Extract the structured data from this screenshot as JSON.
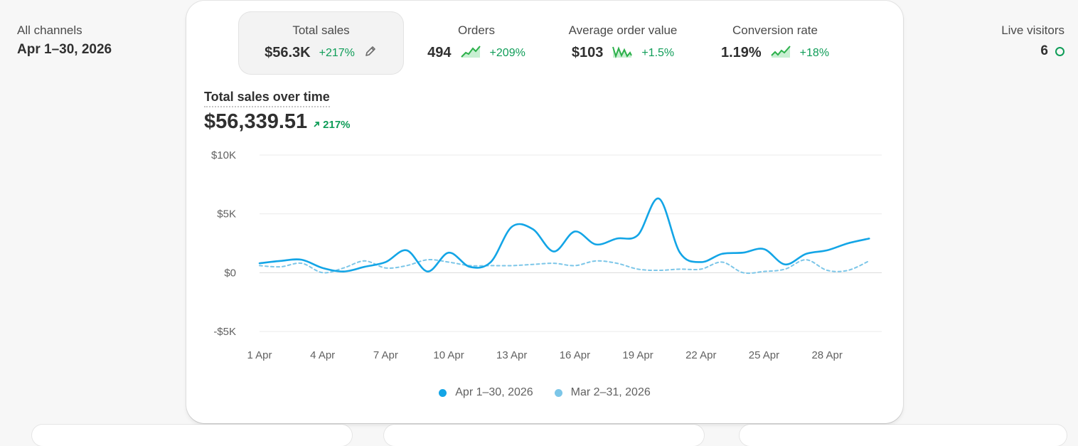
{
  "filters": {
    "channel": "All channels",
    "date_range": "Apr 1–30, 2026"
  },
  "live": {
    "label": "Live visitors",
    "count": "6"
  },
  "metrics": [
    {
      "label": "Total sales",
      "value": "$56.3K",
      "delta": "+217%",
      "icon": "pencil-icon"
    },
    {
      "label": "Orders",
      "value": "494",
      "delta": "+209%",
      "icon": "sparkline-icon"
    },
    {
      "label": "Average order value",
      "value": "$103",
      "delta": "+1.5%",
      "icon": "sparkline-icon"
    },
    {
      "label": "Conversion rate",
      "value": "1.19%",
      "delta": "+18%",
      "icon": "sparkline-icon"
    }
  ],
  "chart_header": {
    "title": "Total sales over time",
    "total": "$56,339.51",
    "delta": "217%"
  },
  "colors": {
    "primary": "#13a5e6",
    "comparison": "#7cc6e8",
    "positive": "#0f9d58"
  },
  "chart_data": {
    "type": "line",
    "title": "Total sales over time",
    "ylim": [
      -5000,
      10000
    ],
    "y_ticks": [
      10000,
      5000,
      0,
      -5000
    ],
    "y_tick_labels": [
      "$10K",
      "$5K",
      "$0",
      "-$5K"
    ],
    "x": [
      1,
      2,
      3,
      4,
      5,
      6,
      7,
      8,
      9,
      10,
      11,
      12,
      13,
      14,
      15,
      16,
      17,
      18,
      19,
      20,
      21,
      22,
      23,
      24,
      25,
      26,
      27,
      28,
      29,
      30
    ],
    "x_tick_labels": [
      "1 Apr",
      "4 Apr",
      "7 Apr",
      "10 Apr",
      "13 Apr",
      "16 Apr",
      "19 Apr",
      "22 Apr",
      "25 Apr",
      "28 Apr"
    ],
    "x_tick_positions": [
      1,
      4,
      7,
      10,
      13,
      16,
      19,
      22,
      25,
      28
    ],
    "grid": true,
    "legend": "bottom-center",
    "series": [
      {
        "name": "Apr 1–30, 2026",
        "style": "solid",
        "values": [
          800,
          1000,
          1100,
          400,
          100,
          500,
          900,
          1900,
          100,
          1700,
          500,
          900,
          3900,
          3700,
          1800,
          3500,
          2400,
          2900,
          3200,
          6300,
          1700,
          900,
          1600,
          1700,
          2000,
          700,
          1600,
          1900,
          2500,
          2900
        ]
      },
      {
        "name": "Mar 2–31, 2026",
        "style": "dashed",
        "values": [
          600,
          500,
          800,
          0,
          400,
          1000,
          400,
          600,
          1100,
          900,
          600,
          600,
          600,
          700,
          800,
          600,
          1000,
          800,
          300,
          200,
          300,
          300,
          900,
          0,
          100,
          300,
          1100,
          200,
          200,
          1000
        ]
      }
    ]
  }
}
